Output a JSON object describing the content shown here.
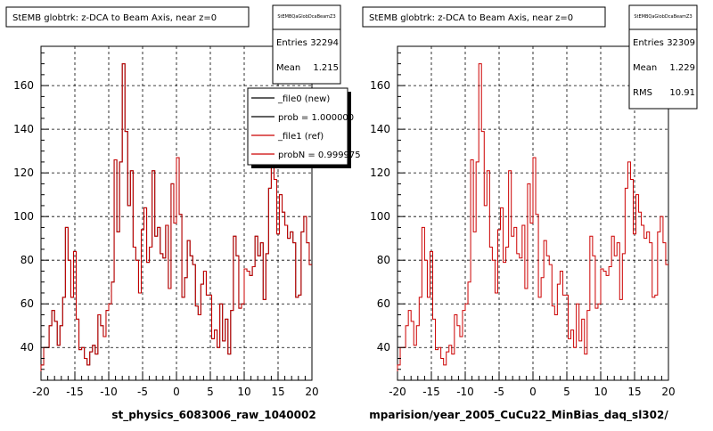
{
  "pages": [
    {
      "title": "StEMB globtrk: z-DCA to Beam Axis, near z=0",
      "stats": {
        "name": "StEMBQaGlobDcaBeamZ3",
        "rows": [
          {
            "label": "Entries",
            "value": "32294"
          },
          {
            "label": "Mean",
            "value": "1.215"
          }
        ]
      },
      "legend": [
        {
          "label": "_file0 (new)",
          "color": "#000000"
        },
        {
          "label": "prob = 1.000000",
          "color": "#000000"
        },
        {
          "label": "_file1 (ref)",
          "color": "#cc0000"
        },
        {
          "label": "probN = 0.999975",
          "color": "#cc0000"
        }
      ],
      "xtitle": "st_physics_6083006_raw_1040002"
    },
    {
      "title": "StEMB globtrk: z-DCA to Beam Axis, near z=0",
      "stats": {
        "name": "StEMBQaGlobDcaBeamZ3",
        "rows": [
          {
            "label": "Entries",
            "value": "32309"
          },
          {
            "label": "Mean",
            "value": "1.229"
          },
          {
            "label": "RMS",
            "value": "10.91"
          }
        ]
      },
      "legend": [],
      "xtitle": "mparision/year_2005_CuCu22_MinBias_daq_sl302/"
    }
  ],
  "chart_data": [
    {
      "type": "line",
      "title": "StEMB globtrk: z-DCA to Beam Axis, near z=0",
      "xlabel": "st_physics_6083006_raw_1040002",
      "xlim": [
        -20,
        20
      ],
      "ylim": [
        25,
        178
      ],
      "xticks": [
        -20,
        -15,
        -10,
        -5,
        0,
        5,
        10,
        15,
        20
      ],
      "yticks": [
        40,
        60,
        80,
        100,
        120,
        140,
        160
      ],
      "grid": true,
      "bin_width": 0.4,
      "series": [
        {
          "name": "_file0 (new)",
          "color": "#000000",
          "values": [
            32,
            40,
            40,
            50,
            57,
            52,
            41,
            50,
            63,
            95,
            80,
            63,
            84,
            53,
            39,
            40,
            35,
            32,
            38,
            41,
            37,
            55,
            50,
            45,
            57,
            60,
            70,
            126,
            93,
            125,
            170,
            139,
            105,
            121,
            86,
            80,
            65,
            94,
            104,
            79,
            86,
            121,
            91,
            95,
            83,
            81,
            96,
            67,
            115,
            97,
            127,
            101,
            63,
            72,
            89,
            82,
            78,
            59,
            55,
            69,
            75,
            64,
            64,
            44,
            48,
            40,
            60,
            43,
            53,
            37,
            57,
            91,
            82,
            58,
            60,
            76,
            75,
            73,
            77,
            91,
            82,
            88,
            62,
            83,
            113,
            125,
            117,
            92,
            110,
            102,
            96,
            90,
            93,
            88,
            63,
            64,
            93,
            100,
            88,
            78
          ]
        },
        {
          "name": "_file1 (ref)",
          "color": "#cc0000",
          "values": [
            32,
            40,
            40,
            50,
            57,
            52,
            41,
            50,
            63,
            95,
            80,
            63,
            84,
            53,
            39,
            40,
            35,
            32,
            38,
            41,
            37,
            55,
            50,
            45,
            57,
            60,
            70,
            126,
            93,
            125,
            170,
            139,
            105,
            121,
            86,
            80,
            65,
            94,
            104,
            79,
            86,
            121,
            91,
            95,
            83,
            81,
            96,
            67,
            115,
            97,
            127,
            101,
            63,
            72,
            89,
            82,
            78,
            59,
            55,
            69,
            75,
            64,
            64,
            44,
            48,
            40,
            60,
            43,
            53,
            37,
            57,
            91,
            82,
            58,
            60,
            76,
            75,
            73,
            77,
            91,
            82,
            88,
            62,
            83,
            113,
            125,
            117,
            92,
            110,
            102,
            96,
            90,
            93,
            88,
            63,
            64,
            93,
            100,
            88,
            78
          ]
        }
      ]
    },
    {
      "type": "line",
      "title": "StEMB globtrk: z-DCA to Beam Axis, near z=0",
      "xlabel": "mparision/year_2005_CuCu22_MinBias_daq_sl302/",
      "xlim": [
        -20,
        20
      ],
      "ylim": [
        25,
        178
      ],
      "xticks": [
        -20,
        -15,
        -10,
        -5,
        0,
        5,
        10,
        15,
        20
      ],
      "yticks": [
        40,
        60,
        80,
        100,
        120,
        140,
        160
      ],
      "grid": true,
      "bin_width": 0.4,
      "series": [
        {
          "name": "",
          "color": "#cc0000",
          "values": [
            32,
            40,
            40,
            50,
            57,
            52,
            41,
            50,
            63,
            95,
            80,
            63,
            84,
            53,
            39,
            40,
            35,
            32,
            38,
            41,
            37,
            55,
            50,
            45,
            57,
            60,
            70,
            126,
            93,
            125,
            170,
            139,
            105,
            121,
            86,
            80,
            65,
            94,
            104,
            79,
            86,
            121,
            91,
            95,
            83,
            81,
            96,
            67,
            115,
            97,
            127,
            101,
            63,
            72,
            89,
            82,
            78,
            59,
            55,
            69,
            75,
            64,
            64,
            44,
            48,
            40,
            60,
            43,
            53,
            37,
            57,
            91,
            82,
            58,
            60,
            76,
            75,
            73,
            77,
            91,
            82,
            88,
            62,
            83,
            113,
            125,
            117,
            92,
            110,
            102,
            96,
            90,
            93,
            88,
            63,
            64,
            93,
            100,
            88,
            78
          ]
        }
      ]
    }
  ]
}
